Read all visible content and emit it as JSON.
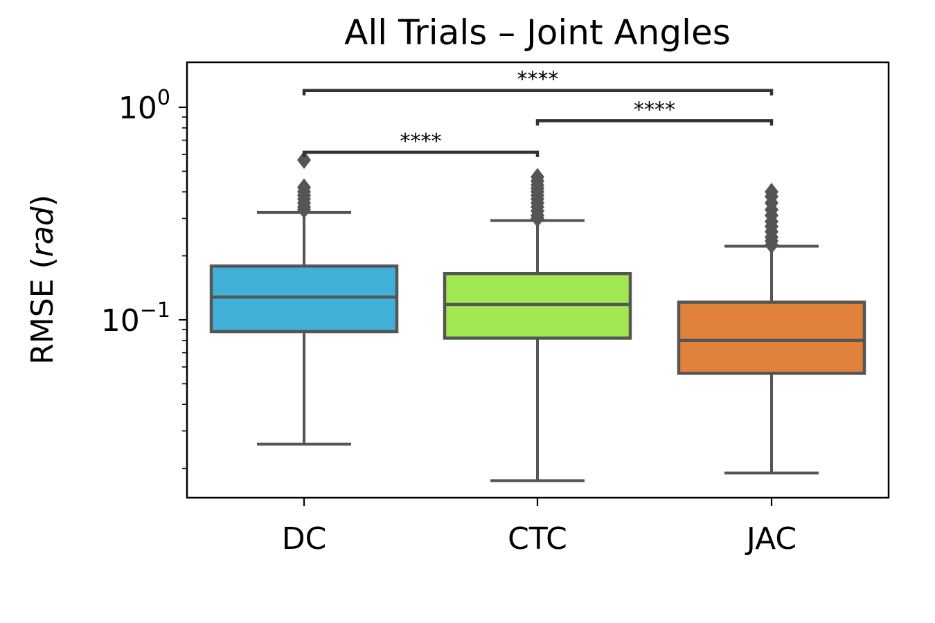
{
  "chart_data": {
    "type": "box",
    "title": "All Trials – Joint Angles",
    "ylabel": {
      "base": "RMSE (",
      "unit": "rad",
      "close": ")"
    },
    "yscale": "log",
    "ylim": [
      0.016,
      1.65
    ],
    "yticks": [
      {
        "value": 0.1,
        "base": "10",
        "exp": "−1"
      },
      {
        "value": 1.0,
        "base": "10",
        "exp": "0"
      }
    ],
    "grid": false,
    "categories": [
      "DC",
      "CTC",
      "JAC"
    ],
    "boxes": [
      {
        "name": "DC",
        "color": "#40b0d8",
        "whislo": 0.026,
        "q1": 0.088,
        "med": 0.128,
        "q3": 0.179,
        "whishi": 0.32,
        "fliers": [
          0.33,
          0.34,
          0.355,
          0.37,
          0.385,
          0.4,
          0.42,
          0.565
        ]
      },
      {
        "name": "CTC",
        "color": "#a2e853",
        "whislo": 0.0175,
        "q1": 0.082,
        "med": 0.118,
        "q3": 0.165,
        "whishi": 0.293,
        "fliers": [
          0.3,
          0.31,
          0.325,
          0.34,
          0.355,
          0.37,
          0.385,
          0.4,
          0.415,
          0.43,
          0.45,
          0.47
        ]
      },
      {
        "name": "JAC",
        "color": "#e0823c",
        "whislo": 0.019,
        "q1": 0.056,
        "med": 0.08,
        "q3": 0.121,
        "whishi": 0.222,
        "fliers": [
          0.225,
          0.235,
          0.245,
          0.26,
          0.275,
          0.29,
          0.31,
          0.33,
          0.355,
          0.38,
          0.4
        ]
      }
    ],
    "annotations": [
      {
        "from": 0,
        "to": 1,
        "label": "****",
        "y": 0.615
      },
      {
        "from": 1,
        "to": 2,
        "label": "****",
        "y": 0.865
      },
      {
        "from": 0,
        "to": 2,
        "label": "****",
        "y": 1.2
      }
    ],
    "line_color": "#555555",
    "bracket_color": "#333333"
  }
}
